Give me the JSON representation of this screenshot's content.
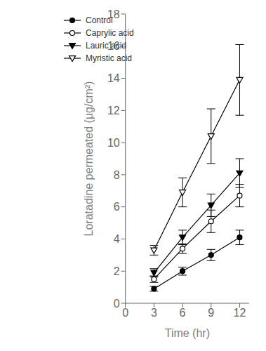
{
  "chart_data": {
    "type": "line",
    "xlabel": "Time (hr)",
    "ylabel": "Loratadine permeated (μg/cm²)",
    "x": [
      3,
      6,
      9,
      12
    ],
    "xlim": [
      0,
      13
    ],
    "xticks": [
      0,
      3,
      6,
      9,
      12
    ],
    "ylim": [
      0,
      18
    ],
    "yticks": [
      0,
      2,
      4,
      6,
      8,
      10,
      12,
      14,
      16,
      18
    ],
    "grid": false,
    "legend": "upper left",
    "color": "black",
    "series": [
      {
        "name": "Control",
        "marker": "filled_circle",
        "values": [
          0.9,
          2.0,
          3.0,
          4.1
        ],
        "errors": [
          0.15,
          0.25,
          0.35,
          0.45
        ]
      },
      {
        "name": "Caprylic acid",
        "marker": "open_circle",
        "values": [
          1.5,
          3.4,
          5.1,
          6.7
        ],
        "errors": [
          0.2,
          0.3,
          0.7,
          0.7
        ]
      },
      {
        "name": "Lauric acid",
        "marker": "filled_triangle_down",
        "values": [
          1.9,
          4.1,
          6.1,
          8.1
        ],
        "errors": [
          0.25,
          0.45,
          0.7,
          0.9
        ]
      },
      {
        "name": "Myristic acid",
        "marker": "open_triangle_down",
        "values": [
          3.3,
          6.9,
          10.4,
          13.9
        ],
        "errors": [
          0.3,
          0.9,
          1.7,
          2.2
        ]
      }
    ]
  }
}
